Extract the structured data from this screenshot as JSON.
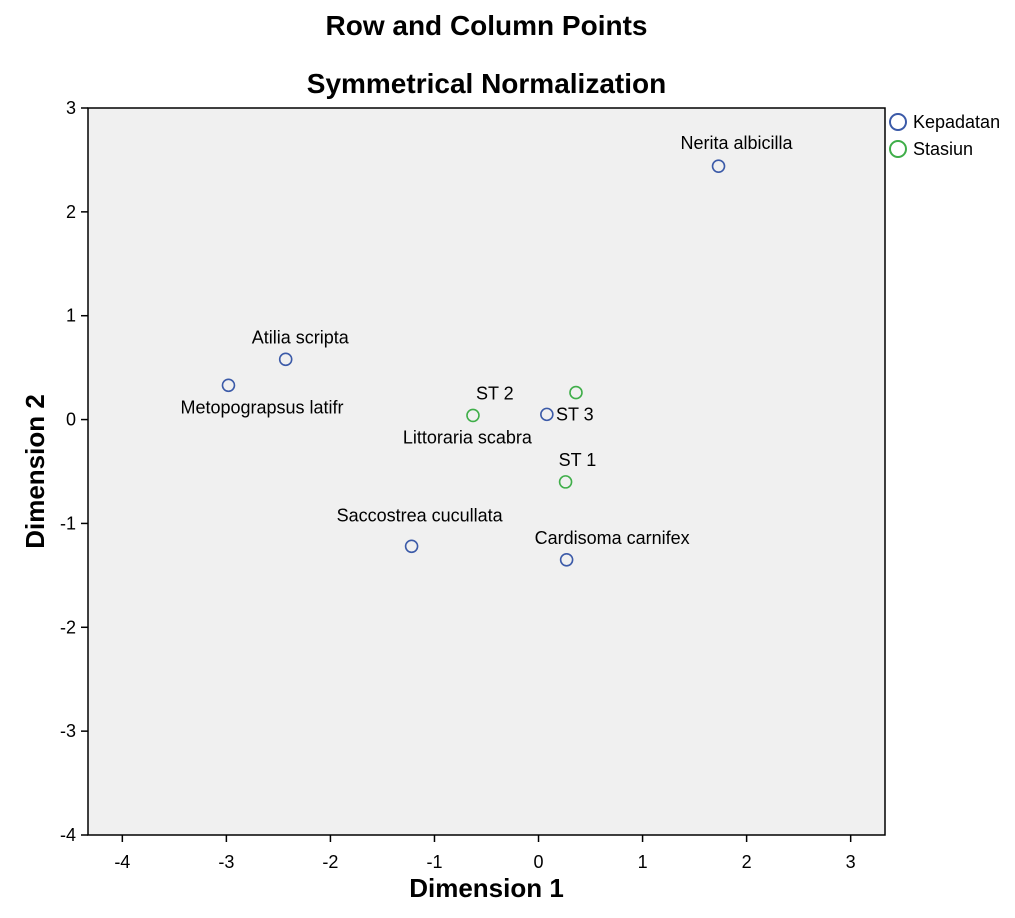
{
  "chart_data": {
    "type": "scatter",
    "title": "Row and Column Points",
    "subtitle": "Symmetrical Normalization",
    "xlabel": "Dimension 1",
    "ylabel": "Dimension 2",
    "xlim": [
      -4.33,
      3.33
    ],
    "ylim": [
      -4,
      3
    ],
    "xticks": [
      -4,
      -3,
      -2,
      -1,
      0,
      1,
      2,
      3
    ],
    "yticks": [
      -4,
      -3,
      -2,
      -1,
      0,
      1,
      2,
      3
    ],
    "grid": false,
    "legend_position": "right",
    "series": [
      {
        "name": "Kepadatan",
        "color": "#3b5aa8",
        "points": [
          {
            "label": "Nerita albicilla",
            "x": 1.73,
            "y": 2.44
          },
          {
            "label": "Atilia scripta",
            "x": -2.43,
            "y": 0.58
          },
          {
            "label": "Metopograpsus latifr",
            "x": -2.98,
            "y": 0.33
          },
          {
            "label": "Littoraria scabra",
            "x": 0.08,
            "y": 0.05
          },
          {
            "label": "Saccostrea cucullata",
            "x": -1.22,
            "y": -1.22
          },
          {
            "label": "Cardisoma carnifex",
            "x": 0.27,
            "y": -1.35
          }
        ]
      },
      {
        "name": "Stasiun",
        "color": "#3fae49",
        "points": [
          {
            "label": "ST 2",
            "x": -0.63,
            "y": 0.04
          },
          {
            "label": "ST 3",
            "x": 0.36,
            "y": 0.26
          },
          {
            "label": "ST 1",
            "x": 0.26,
            "y": -0.6
          }
        ]
      }
    ]
  }
}
